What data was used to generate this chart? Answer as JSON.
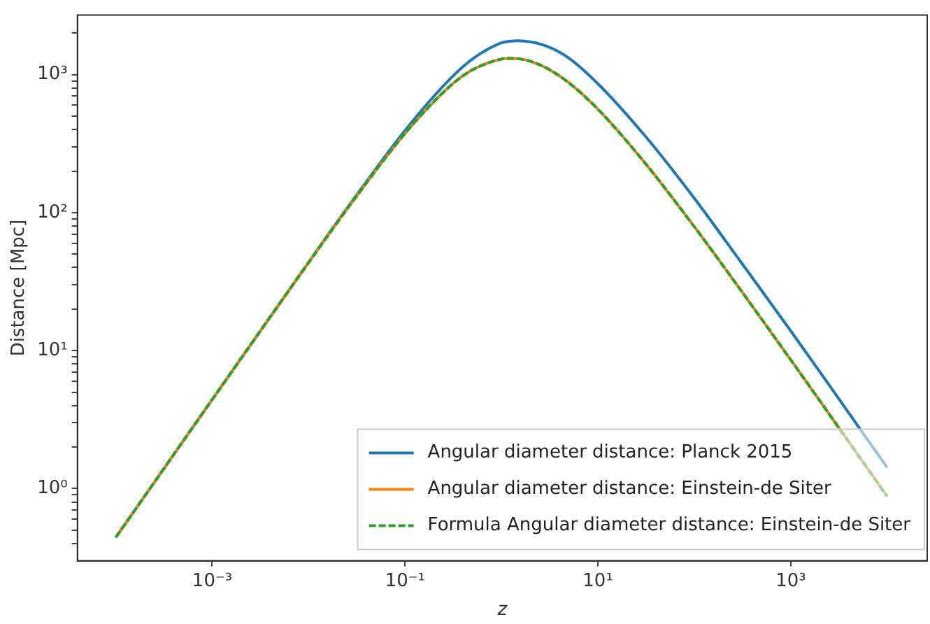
{
  "chart_data": {
    "type": "line",
    "xlabel": "z",
    "ylabel": "Distance [Mpc]",
    "x": [
      0.0001,
      0.001,
      0.01,
      0.03,
      0.1,
      0.3,
      0.5,
      1,
      1.25,
      1.5,
      2,
      3,
      5,
      10,
      30,
      100,
      300,
      1000,
      3000,
      10000
    ],
    "series": [
      {
        "name": "Angular diameter distance: Planck 2015",
        "color": "#1f77b4",
        "line_style": "solid",
        "values": [
          0.443,
          4.42,
          43.7,
          128,
          394,
          946,
          1297,
          1700,
          1750,
          1760,
          1727,
          1600,
          1317,
          859,
          368,
          127,
          44.4,
          13.9,
          4.7,
          1.42
        ]
      },
      {
        "name": "Angular diameter distance: Einstein-de Siter",
        "color": "#ff7f0e",
        "line_style": "solid",
        "values": [
          0.443,
          4.42,
          43.5,
          126,
          375,
          838,
          1083,
          1297,
          1312,
          1305,
          1248,
          1107,
          873,
          562,
          234,
          79,
          27.7,
          8.57,
          2.9,
          0.877
        ]
      },
      {
        "name": "Formula Angular diameter distance: Einstein-de Siter",
        "color": "#2ca02c",
        "line_style": "dashed",
        "values": [
          0.443,
          4.42,
          43.5,
          126,
          375,
          838,
          1083,
          1297,
          1312,
          1305,
          1248,
          1107,
          873,
          562,
          234,
          79,
          27.7,
          8.57,
          2.9,
          0.877
        ]
      }
    ],
    "log": "xy",
    "grid": false,
    "legend": "bottom right",
    "marker": "none",
    "xlim": [
      4e-05,
      26000
    ],
    "ylim": [
      0.31,
      2700
    ],
    "xticks": [
      {
        "value": 0.001,
        "label": "10⁻³"
      },
      {
        "value": 0.1,
        "label": "10⁻¹"
      },
      {
        "value": 10,
        "label": "10¹"
      },
      {
        "value": 1000,
        "label": "10³"
      }
    ],
    "yticks": [
      {
        "value": 0.4,
        "label": null
      },
      {
        "value": 0.5,
        "label": null
      },
      {
        "value": 0.6,
        "label": null
      },
      {
        "value": 0.7,
        "label": null
      },
      {
        "value": 0.8,
        "label": null
      },
      {
        "value": 0.9,
        "label": null
      },
      {
        "value": 1,
        "label": "10⁰"
      },
      {
        "value": 2,
        "label": null
      },
      {
        "value": 3,
        "label": null
      },
      {
        "value": 4,
        "label": null
      },
      {
        "value": 5,
        "label": null
      },
      {
        "value": 6,
        "label": null
      },
      {
        "value": 7,
        "label": null
      },
      {
        "value": 8,
        "label": null
      },
      {
        "value": 9,
        "label": null
      },
      {
        "value": 10,
        "label": "10¹"
      },
      {
        "value": 20,
        "label": null
      },
      {
        "value": 30,
        "label": null
      },
      {
        "value": 40,
        "label": null
      },
      {
        "value": 50,
        "label": null
      },
      {
        "value": 60,
        "label": null
      },
      {
        "value": 70,
        "label": null
      },
      {
        "value": 80,
        "label": null
      },
      {
        "value": 90,
        "label": null
      },
      {
        "value": 100,
        "label": "10²"
      },
      {
        "value": 200,
        "label": null
      },
      {
        "value": 300,
        "label": null
      },
      {
        "value": 400,
        "label": null
      },
      {
        "value": 500,
        "label": null
      },
      {
        "value": 600,
        "label": null
      },
      {
        "value": 700,
        "label": null
      },
      {
        "value": 800,
        "label": null
      },
      {
        "value": 900,
        "label": null
      },
      {
        "value": 1000,
        "label": "10³"
      },
      {
        "value": 2000,
        "label": null
      }
    ]
  }
}
